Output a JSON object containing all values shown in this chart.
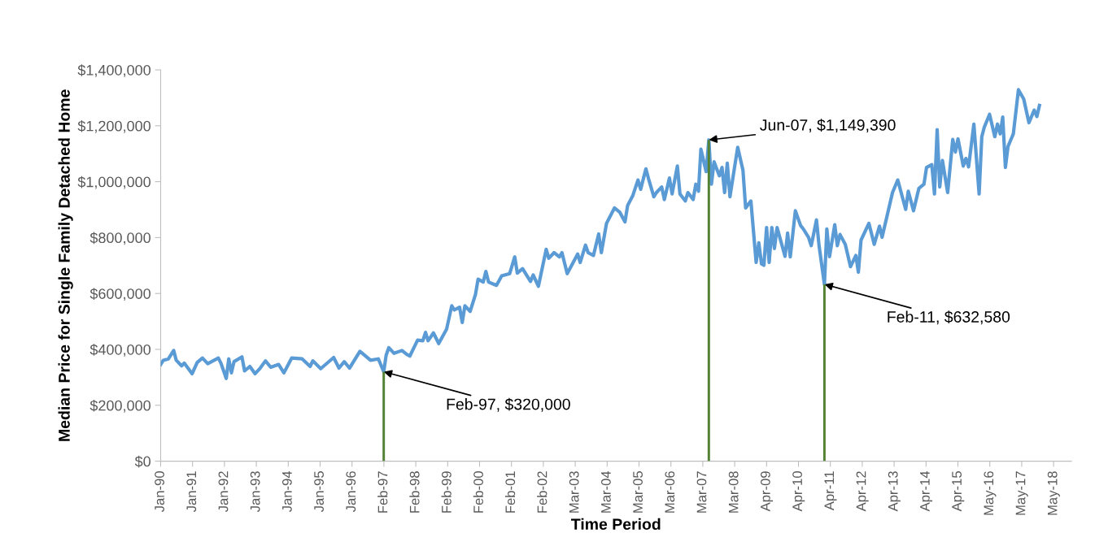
{
  "chart_data": {
    "type": "line",
    "xlabel": "Time Period",
    "ylabel": "Median Price for Single Family Detached Home",
    "ylim": [
      0,
      1400000
    ],
    "yticks": [
      {
        "value": 0,
        "label": "$0"
      },
      {
        "value": 200000,
        "label": "$200,000"
      },
      {
        "value": 400000,
        "label": "$400,000"
      },
      {
        "value": 600000,
        "label": "$600,000"
      },
      {
        "value": 800000,
        "label": "$800,000"
      },
      {
        "value": 1000000,
        "label": "$1,000,000"
      },
      {
        "value": 1200000,
        "label": "$1,200,000"
      },
      {
        "value": 1400000,
        "label": "$1,400,000"
      }
    ],
    "xlim": [
      "1990-01-01",
      "2018-12-07"
    ],
    "xticks": [
      {
        "value": "1990-01-01",
        "label": "Jan-90"
      },
      {
        "value": "1991-01-06",
        "label": "Jan-91"
      },
      {
        "value": "1992-01-11",
        "label": "Jan-92"
      },
      {
        "value": "1993-01-15",
        "label": "Jan-93"
      },
      {
        "value": "1994-01-20",
        "label": "Jan-94"
      },
      {
        "value": "1995-01-25",
        "label": "Jan-95"
      },
      {
        "value": "1996-01-30",
        "label": "Jan-96"
      },
      {
        "value": "1997-02-03",
        "label": "Feb-97"
      },
      {
        "value": "1998-02-08",
        "label": "Feb-98"
      },
      {
        "value": "1999-02-13",
        "label": "Feb-99"
      },
      {
        "value": "2000-02-18",
        "label": "Feb-00"
      },
      {
        "value": "2001-02-22",
        "label": "Feb-01"
      },
      {
        "value": "2002-02-27",
        "label": "Feb-02"
      },
      {
        "value": "2003-03-04",
        "label": "Mar-03"
      },
      {
        "value": "2004-03-08",
        "label": "Mar-04"
      },
      {
        "value": "2005-03-13",
        "label": "Mar-05"
      },
      {
        "value": "2006-03-18",
        "label": "Mar-06"
      },
      {
        "value": "2007-03-23",
        "label": "Mar-07"
      },
      {
        "value": "2008-03-27",
        "label": "Mar-08"
      },
      {
        "value": "2009-04-01",
        "label": "Apr-09"
      },
      {
        "value": "2010-04-06",
        "label": "Apr-10"
      },
      {
        "value": "2011-04-11",
        "label": "Apr-11"
      },
      {
        "value": "2012-04-15",
        "label": "Apr-12"
      },
      {
        "value": "2013-04-20",
        "label": "Apr-13"
      },
      {
        "value": "2014-04-25",
        "label": "Apr-14"
      },
      {
        "value": "2015-04-30",
        "label": "Apr-15"
      },
      {
        "value": "2016-05-04",
        "label": "May-16"
      },
      {
        "value": "2017-05-09",
        "label": "May-17"
      },
      {
        "value": "2018-05-14",
        "label": "May-18"
      }
    ],
    "grid": false,
    "legend": false,
    "marker": "none",
    "line_style": "solid",
    "annotations": [
      {
        "text": "Feb-97, $320,000",
        "x": "1997-02",
        "y": 320000
      },
      {
        "text": "Jun-07, $1,149,390",
        "x": "2007-06",
        "y": 1149390
      },
      {
        "text": "Feb-11, $632,580",
        "x": "2011-02",
        "y": 632580
      }
    ],
    "series": [
      {
        "color": "#5b9bd5",
        "x": [
          "1990-01",
          "1990-02",
          "1990-04",
          "1990-06",
          "1990-07",
          "1990-09",
          "1990-10",
          "1991-01",
          "1991-03",
          "1991-05",
          "1991-07",
          "1991-11",
          "1991-12",
          "1992-02",
          "1992-03",
          "1992-04",
          "1992-05",
          "1992-08",
          "1992-09",
          "1992-11",
          "1993-01",
          "1993-03",
          "1993-05",
          "1993-07",
          "1993-10",
          "1993-12",
          "1994-03",
          "1994-07",
          "1994-10",
          "1994-11",
          "1995-02",
          "1995-07",
          "1995-09",
          "1995-11",
          "1996-01",
          "1996-05",
          "1996-09",
          "1996-12",
          "1997-02",
          "1997-03",
          "1997-04",
          "1997-06",
          "1997-09",
          "1997-11",
          "1997-12",
          "1998-03",
          "1998-05",
          "1998-06",
          "1998-07",
          "1998-09",
          "1998-11",
          "1999-02",
          "1999-04",
          "1999-05",
          "1999-07",
          "1999-08",
          "1999-09",
          "1999-11",
          "2000-01",
          "2000-02",
          "2000-04",
          "2000-05",
          "2000-06",
          "2000-09",
          "2000-11",
          "2001-02",
          "2001-04",
          "2001-05",
          "2001-07",
          "2001-10",
          "2001-11",
          "2002-01",
          "2002-04",
          "2002-05",
          "2002-07",
          "2002-09",
          "2002-10",
          "2002-12",
          "2003-04",
          "2003-05",
          "2003-07",
          "2003-08",
          "2003-10",
          "2003-12",
          "2004-01",
          "2004-03",
          "2004-06",
          "2004-08",
          "2004-10",
          "2004-11",
          "2005-01",
          "2005-03",
          "2005-04",
          "2005-06",
          "2005-07",
          "2005-09",
          "2005-10",
          "2005-12",
          "2006-01",
          "2006-03",
          "2006-04",
          "2006-06",
          "2006-07",
          "2006-09",
          "2006-10",
          "2006-12",
          "2007-01",
          "2007-02",
          "2007-03",
          "2007-05",
          "2007-06",
          "2007-07",
          "2007-08",
          "2007-10",
          "2007-11",
          "2007-12",
          "2008-01",
          "2008-02",
          "2008-05",
          "2008-07",
          "2008-08",
          "2008-10",
          "2008-12",
          "2009-01",
          "2009-02",
          "2009-03",
          "2009-04",
          "2009-05",
          "2009-06",
          "2009-07",
          "2009-08",
          "2009-11",
          "2009-12",
          "2010-01",
          "2010-03",
          "2010-05",
          "2010-06",
          "2010-08",
          "2010-09",
          "2010-11",
          "2010-12",
          "2011-02",
          "2011-03",
          "2011-04",
          "2011-06",
          "2011-07",
          "2011-08",
          "2011-10",
          "2011-12",
          "2012-02",
          "2012-03",
          "2012-04",
          "2012-07",
          "2012-09",
          "2012-11",
          "2012-12",
          "2013-04",
          "2013-06",
          "2013-09",
          "2013-10",
          "2013-12",
          "2014-02",
          "2014-04",
          "2014-05",
          "2014-07",
          "2014-08",
          "2014-09",
          "2014-10",
          "2014-11",
          "2015-01",
          "2015-03",
          "2015-04",
          "2015-05",
          "2015-07",
          "2015-08",
          "2015-09",
          "2015-11",
          "2016-01",
          "2016-02",
          "2016-03",
          "2016-05",
          "2016-07",
          "2016-08",
          "2016-09",
          "2016-10",
          "2016-11",
          "2016-12",
          "2017-02",
          "2017-04",
          "2017-06",
          "2017-08",
          "2017-10",
          "2017-11",
          "2017-12"
        ],
        "values": [
          346000,
          361000,
          366000,
          396000,
          361000,
          341000,
          351000,
          313000,
          353000,
          369000,
          349000,
          369000,
          351000,
          296000,
          366000,
          316000,
          356000,
          373000,
          323000,
          339000,
          313000,
          333000,
          359000,
          336000,
          346000,
          316000,
          369000,
          366000,
          339000,
          359000,
          331000,
          371000,
          333000,
          356000,
          333000,
          393000,
          361000,
          366000,
          320000,
          379000,
          406000,
          386000,
          396000,
          381000,
          376000,
          433000,
          431000,
          461000,
          431000,
          459000,
          421000,
          473000,
          556000,
          541000,
          551000,
          496000,
          556000,
          536000,
          596000,
          651000,
          641000,
          679000,
          641000,
          629000,
          663000,
          671000,
          731000,
          673000,
          689000,
          643000,
          666000,
          626000,
          758000,
          726000,
          746000,
          731000,
          746000,
          671000,
          741000,
          711000,
          773000,
          746000,
          736000,
          813000,
          746000,
          851000,
          906000,
          891000,
          856000,
          915000,
          951000,
          1006000,
          973000,
          1046000,
          1011000,
          946000,
          961000,
          981000,
          936000,
          1013000,
          956000,
          1056000,
          956000,
          931000,
          961000,
          936000,
          991000,
          966000,
          1116000,
          1036000,
          1149390,
          991000,
          1071000,
          1021000,
          1051000,
          961000,
          1066000,
          946000,
          1123000,
          1041000,
          906000,
          931000,
          711000,
          781000,
          706000,
          701000,
          836000,
          711000,
          836000,
          761000,
          836000,
          733000,
          816000,
          731000,
          896000,
          843000,
          831000,
          801000,
          771000,
          863000,
          771000,
          632580,
          831000,
          732000,
          846000,
          771000,
          811000,
          776000,
          696000,
          736000,
          676000,
          791000,
          851000,
          776000,
          841000,
          801000,
          961000,
          1006000,
          901000,
          966000,
          896000,
          976000,
          991000,
          1051000,
          1061000,
          956000,
          1186000,
          981000,
          1076000,
          961000,
          1151000,
          1106000,
          1153000,
          1056000,
          1083000,
          1053000,
          1206000,
          956000,
          1161000,
          1195000,
          1241000,
          1161000,
          1206000,
          1171000,
          1231000,
          1051000,
          1126000,
          1171000,
          1329000,
          1296000,
          1211000,
          1256000,
          1233000,
          1273000
        ]
      },
      {
        "type": "bar",
        "color": "#548235",
        "x": [
          "1997-02",
          "2007-06",
          "2011-02"
        ],
        "values": [
          320000,
          1149390,
          632580
        ]
      }
    ]
  }
}
